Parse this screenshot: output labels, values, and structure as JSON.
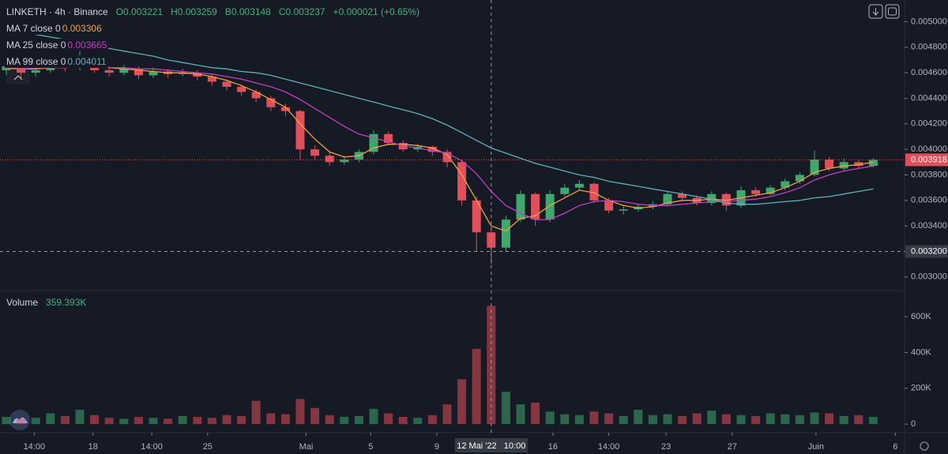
{
  "chart_data": {
    "type": "candlestick",
    "title": "LINKETH · 4h · Binance",
    "ohlc_labels": [
      "O0.003221",
      "H0.003259",
      "B0.003148",
      "C0.003237",
      "+0.000021 (+0.65%)"
    ],
    "up_color": "#3fa86d",
    "down_color": "#e0505a",
    "open": [
      0.00462,
      0.00465,
      0.0046,
      0.00462,
      0.00466,
      0.00464,
      0.0047,
      0.00462,
      0.0046,
      0.00463,
      0.00458,
      0.00461,
      0.00459,
      0.0046,
      0.00457,
      0.00453,
      0.00449,
      0.00445,
      0.0044,
      0.00433,
      0.0043,
      0.004,
      0.00395,
      0.0039,
      0.00392,
      0.00398,
      0.00412,
      0.00405,
      0.004,
      0.00402,
      0.00398,
      0.0039,
      0.0036,
      0.00335,
      0.00323,
      0.00345,
      0.00365,
      0.00345,
      0.00365,
      0.0037,
      0.00373,
      0.0036,
      0.00352,
      0.00353,
      0.00355,
      0.00357,
      0.00365,
      0.00362,
      0.00358,
      0.00365,
      0.00356,
      0.00368,
      0.00365,
      0.0037,
      0.00375,
      0.0038,
      0.00392,
      0.00385,
      0.0039,
      0.00387
    ],
    "high": [
      0.00468,
      0.00467,
      0.00465,
      0.00469,
      0.00468,
      0.00479,
      0.00472,
      0.00465,
      0.00466,
      0.00465,
      0.00464,
      0.00463,
      0.00463,
      0.00462,
      0.00459,
      0.00455,
      0.00451,
      0.00447,
      0.00442,
      0.00436,
      0.00431,
      0.00403,
      0.00398,
      0.00395,
      0.004,
      0.00415,
      0.00414,
      0.00407,
      0.00404,
      0.00403,
      0.004,
      0.00392,
      0.00363,
      0.00338,
      0.00348,
      0.00368,
      0.00366,
      0.00368,
      0.00373,
      0.00376,
      0.00374,
      0.00362,
      0.00356,
      0.00357,
      0.00359,
      0.00367,
      0.00367,
      0.00364,
      0.00367,
      0.00366,
      0.00371,
      0.0037,
      0.00372,
      0.00377,
      0.00382,
      0.00399,
      0.00394,
      0.00393,
      0.00392,
      0.00393
    ],
    "low": [
      0.00458,
      0.00456,
      0.00457,
      0.0046,
      0.00461,
      0.00462,
      0.0046,
      0.00457,
      0.00458,
      0.00455,
      0.00456,
      0.00456,
      0.00457,
      0.00454,
      0.0045,
      0.00446,
      0.00442,
      0.00437,
      0.0043,
      0.00426,
      0.00392,
      0.00392,
      0.00387,
      0.00388,
      0.0039,
      0.00396,
      0.00403,
      0.00398,
      0.00398,
      0.00395,
      0.00386,
      0.00356,
      0.0032,
      0.0031,
      0.0032,
      0.00343,
      0.0034,
      0.00343,
      0.00363,
      0.00368,
      0.00358,
      0.0035,
      0.00349,
      0.00351,
      0.00353,
      0.00355,
      0.0036,
      0.00356,
      0.00356,
      0.00352,
      0.00354,
      0.00363,
      0.00364,
      0.00368,
      0.00373,
      0.00379,
      0.00383,
      0.00383,
      0.00385,
      0.00386
    ],
    "close": [
      0.00465,
      0.0046,
      0.00462,
      0.00466,
      0.00464,
      0.0047,
      0.00462,
      0.0046,
      0.00463,
      0.00458,
      0.00461,
      0.00459,
      0.0046,
      0.00457,
      0.00453,
      0.00449,
      0.00445,
      0.0044,
      0.00433,
      0.0043,
      0.004,
      0.00395,
      0.0039,
      0.00392,
      0.00398,
      0.00412,
      0.00405,
      0.004,
      0.00402,
      0.00398,
      0.0039,
      0.0036,
      0.00335,
      0.00323,
      0.00345,
      0.00365,
      0.00345,
      0.00365,
      0.0037,
      0.00373,
      0.0036,
      0.00352,
      0.00353,
      0.00355,
      0.00357,
      0.00365,
      0.00362,
      0.00358,
      0.00365,
      0.00356,
      0.00368,
      0.00365,
      0.0037,
      0.00375,
      0.0038,
      0.00392,
      0.00385,
      0.0039,
      0.00387,
      0.003918
    ],
    "series": [
      {
        "name": "MA 7 close 0",
        "value_label": "0.003306",
        "color": "#f0a040",
        "values": [
          0.00464,
          0.00463,
          0.00463,
          0.00464,
          0.00464,
          0.00465,
          0.00465,
          0.00464,
          0.00463,
          0.00462,
          0.00461,
          0.0046,
          0.0046,
          0.00459,
          0.00457,
          0.00454,
          0.0045,
          0.00445,
          0.00439,
          0.00433,
          0.0042,
          0.00408,
          0.00398,
          0.00394,
          0.00395,
          0.00401,
          0.00404,
          0.00404,
          0.00403,
          0.00401,
          0.00396,
          0.0038,
          0.0036,
          0.0034,
          0.00336,
          0.00346,
          0.00348,
          0.00356,
          0.00362,
          0.00368,
          0.00366,
          0.0036,
          0.00356,
          0.00354,
          0.00355,
          0.00358,
          0.0036,
          0.0036,
          0.00361,
          0.0036,
          0.00362,
          0.00364,
          0.00366,
          0.0037,
          0.00375,
          0.00382,
          0.00385,
          0.00387,
          0.00388,
          0.0039
        ]
      },
      {
        "name": "MA 25 close 0",
        "value_label": "0.003665",
        "color": "#c040c0",
        "values": [
          0.00463,
          0.00463,
          0.00464,
          0.00464,
          0.00464,
          0.00465,
          0.00465,
          0.00464,
          0.00464,
          0.00463,
          0.00463,
          0.00462,
          0.00461,
          0.0046,
          0.00459,
          0.00457,
          0.00455,
          0.00452,
          0.00449,
          0.00445,
          0.00439,
          0.00432,
          0.00425,
          0.00418,
          0.00412,
          0.00409,
          0.00406,
          0.00403,
          0.00401,
          0.00399,
          0.00397,
          0.00391,
          0.00381,
          0.00367,
          0.00356,
          0.0035,
          0.00345,
          0.00345,
          0.0035,
          0.00356,
          0.00359,
          0.0036,
          0.00359,
          0.00357,
          0.00356,
          0.00356,
          0.00357,
          0.00358,
          0.00359,
          0.00359,
          0.0036,
          0.00361,
          0.00363,
          0.00366,
          0.0037,
          0.00376,
          0.0038,
          0.00383,
          0.00385,
          0.00387
        ]
      },
      {
        "name": "MA 99 close 0",
        "value_label": "0.004011",
        "color": "#5fb0b8",
        "values": [
          0.00496,
          0.00493,
          0.0049,
          0.00488,
          0.00486,
          0.00483,
          0.00481,
          0.00479,
          0.00477,
          0.00475,
          0.00473,
          0.0047,
          0.00468,
          0.00466,
          0.00464,
          0.00463,
          0.00461,
          0.0046,
          0.00458,
          0.00455,
          0.00452,
          0.00449,
          0.00446,
          0.00443,
          0.0044,
          0.00437,
          0.00434,
          0.00431,
          0.00428,
          0.00424,
          0.00419,
          0.00413,
          0.00407,
          0.00401,
          0.00397,
          0.00393,
          0.00389,
          0.00386,
          0.00383,
          0.0038,
          0.00378,
          0.00375,
          0.00373,
          0.00371,
          0.00369,
          0.00367,
          0.00365,
          0.00363,
          0.00361,
          0.00358,
          0.00357,
          0.00357,
          0.00358,
          0.00359,
          0.0036,
          0.00362,
          0.00363,
          0.00365,
          0.00367,
          0.00369
        ]
      }
    ],
    "ylim": [
      0.0029,
      0.00517
    ],
    "yticks": [
      {
        "value": 0.003,
        "label": "0.003000"
      },
      {
        "value": 0.0032,
        "label": "0.003200"
      },
      {
        "value": 0.0034,
        "label": "0.003400"
      },
      {
        "value": 0.0036,
        "label": "0.003600"
      },
      {
        "value": 0.0038,
        "label": "0.003800"
      },
      {
        "value": 0.004,
        "label": "0.004000"
      },
      {
        "value": 0.0042,
        "label": "0.004200"
      },
      {
        "value": 0.0044,
        "label": "0.004400"
      },
      {
        "value": 0.0046,
        "label": "0.004600"
      },
      {
        "value": 0.0048,
        "label": "0.004800"
      },
      {
        "value": 0.005,
        "label": "0.005000"
      }
    ],
    "xticks": [
      {
        "value": 1.9,
        "label": "14:00"
      },
      {
        "value": 5.9,
        "label": "18"
      },
      {
        "value": 9.9,
        "label": "14:00"
      },
      {
        "value": 13.7,
        "label": "25"
      },
      {
        "value": 20.4,
        "label": "Mai"
      },
      {
        "value": 24.8,
        "label": "5"
      },
      {
        "value": 29.3,
        "label": "9"
      },
      {
        "value": 37.2,
        "label": "16"
      },
      {
        "value": 41,
        "label": "14:00"
      },
      {
        "value": 44.9,
        "label": "23"
      },
      {
        "value": 49.4,
        "label": "27"
      },
      {
        "value": 55.1,
        "label": "Juin"
      },
      {
        "value": 60.5,
        "label": "6"
      }
    ],
    "last_price": {
      "value": 0.003918,
      "label": "0.003918"
    },
    "crosshair": {
      "x": {
        "value": 33,
        "label": "12 Mai '22   10:00"
      },
      "y": {
        "value": 0.0032,
        "label": "0.003200"
      }
    },
    "volume": {
      "name": "Volume",
      "value_label": "359.393K",
      "values": [
        40000,
        30000,
        35000,
        60000,
        45000,
        80000,
        50000,
        35000,
        30000,
        40000,
        35000,
        30000,
        45000,
        40000,
        35000,
        50000,
        45000,
        130000,
        60000,
        55000,
        140000,
        90000,
        50000,
        40000,
        45000,
        85000,
        60000,
        40000,
        35000,
        50000,
        110000,
        250000,
        420000,
        660000,
        180000,
        110000,
        120000,
        70000,
        55000,
        50000,
        70000,
        60000,
        45000,
        80000,
        50000,
        55000,
        45000,
        60000,
        75000,
        55000,
        50000,
        45000,
        60000,
        55000,
        50000,
        65000,
        60000,
        45000,
        50000,
        40000
      ],
      "ylim": [
        -48000,
        737000
      ],
      "yticks": [
        0,
        {
          "value": 200000,
          "label": "200K"
        },
        {
          "value": 400000,
          "label": "400K"
        },
        {
          "value": 600000,
          "label": "600K"
        }
      ]
    }
  }
}
